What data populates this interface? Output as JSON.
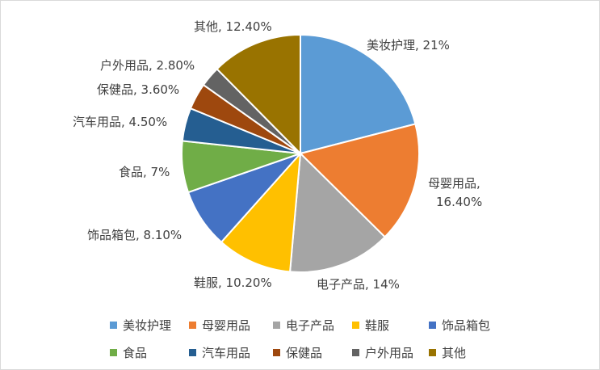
{
  "chart_data": {
    "type": "pie",
    "categories": [
      "美妆护理",
      "母婴用品",
      "电子产品",
      "鞋服",
      "饰品箱包",
      "食品",
      "汽车用品",
      "保健品",
      "户外用品",
      "其他"
    ],
    "values": [
      21,
      16.4,
      14,
      10.2,
      8.1,
      7,
      4.5,
      3.6,
      2.8,
      12.4
    ],
    "value_labels": [
      "21%",
      "16.40%",
      "14%",
      "10.20%",
      "8.10%",
      "7%",
      "4.50%",
      "3.60%",
      "2.80%",
      "12.40%"
    ],
    "colors": [
      "#5B9BD5",
      "#ED7D31",
      "#A5A5A5",
      "#FFC000",
      "#4472C4",
      "#70AD47",
      "#255E91",
      "#9E480E",
      "#636363",
      "#997300"
    ],
    "legend_position": "bottom",
    "title": ""
  }
}
